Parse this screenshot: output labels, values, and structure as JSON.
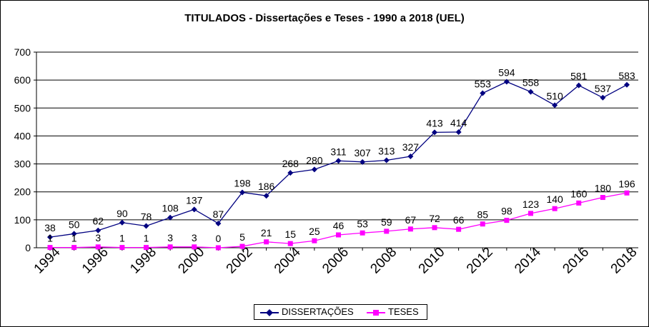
{
  "chart_data": {
    "type": "line",
    "title": "TITULADOS - Dissertações e Teses - 1990 a 2018 (UEL)",
    "xlabel": "",
    "ylabel": "",
    "ylim": [
      0,
      700
    ],
    "yticks": [
      0,
      100,
      200,
      300,
      400,
      500,
      600,
      700
    ],
    "x": [
      1994,
      1995,
      1996,
      1997,
      1998,
      1999,
      2000,
      2001,
      2002,
      2003,
      2004,
      2005,
      2006,
      2007,
      2008,
      2009,
      2010,
      2011,
      2012,
      2013,
      2014,
      2015,
      2016,
      2017,
      2018
    ],
    "xtick_labels": [
      "1994",
      "1996",
      "1998",
      "2000",
      "2002",
      "2004",
      "2006",
      "2008",
      "2010",
      "2012",
      "2014",
      "2016",
      "2018"
    ],
    "grid": "horizontal",
    "legend": "bottom-center",
    "series": [
      {
        "name": "DISSERTAÇÕES",
        "color": "#000080",
        "marker": "diamond",
        "values": [
          38,
          50,
          62,
          90,
          78,
          108,
          137,
          87,
          198,
          186,
          268,
          280,
          311,
          307,
          313,
          327,
          413,
          414,
          553,
          594,
          558,
          510,
          581,
          537,
          583
        ]
      },
      {
        "name": "TESES",
        "color": "#ff00ff",
        "marker": "square",
        "values": [
          1,
          1,
          3,
          1,
          1,
          3,
          3,
          0,
          5,
          21,
          15,
          25,
          46,
          53,
          59,
          67,
          72,
          66,
          85,
          98,
          123,
          140,
          160,
          180,
          196
        ]
      }
    ]
  }
}
